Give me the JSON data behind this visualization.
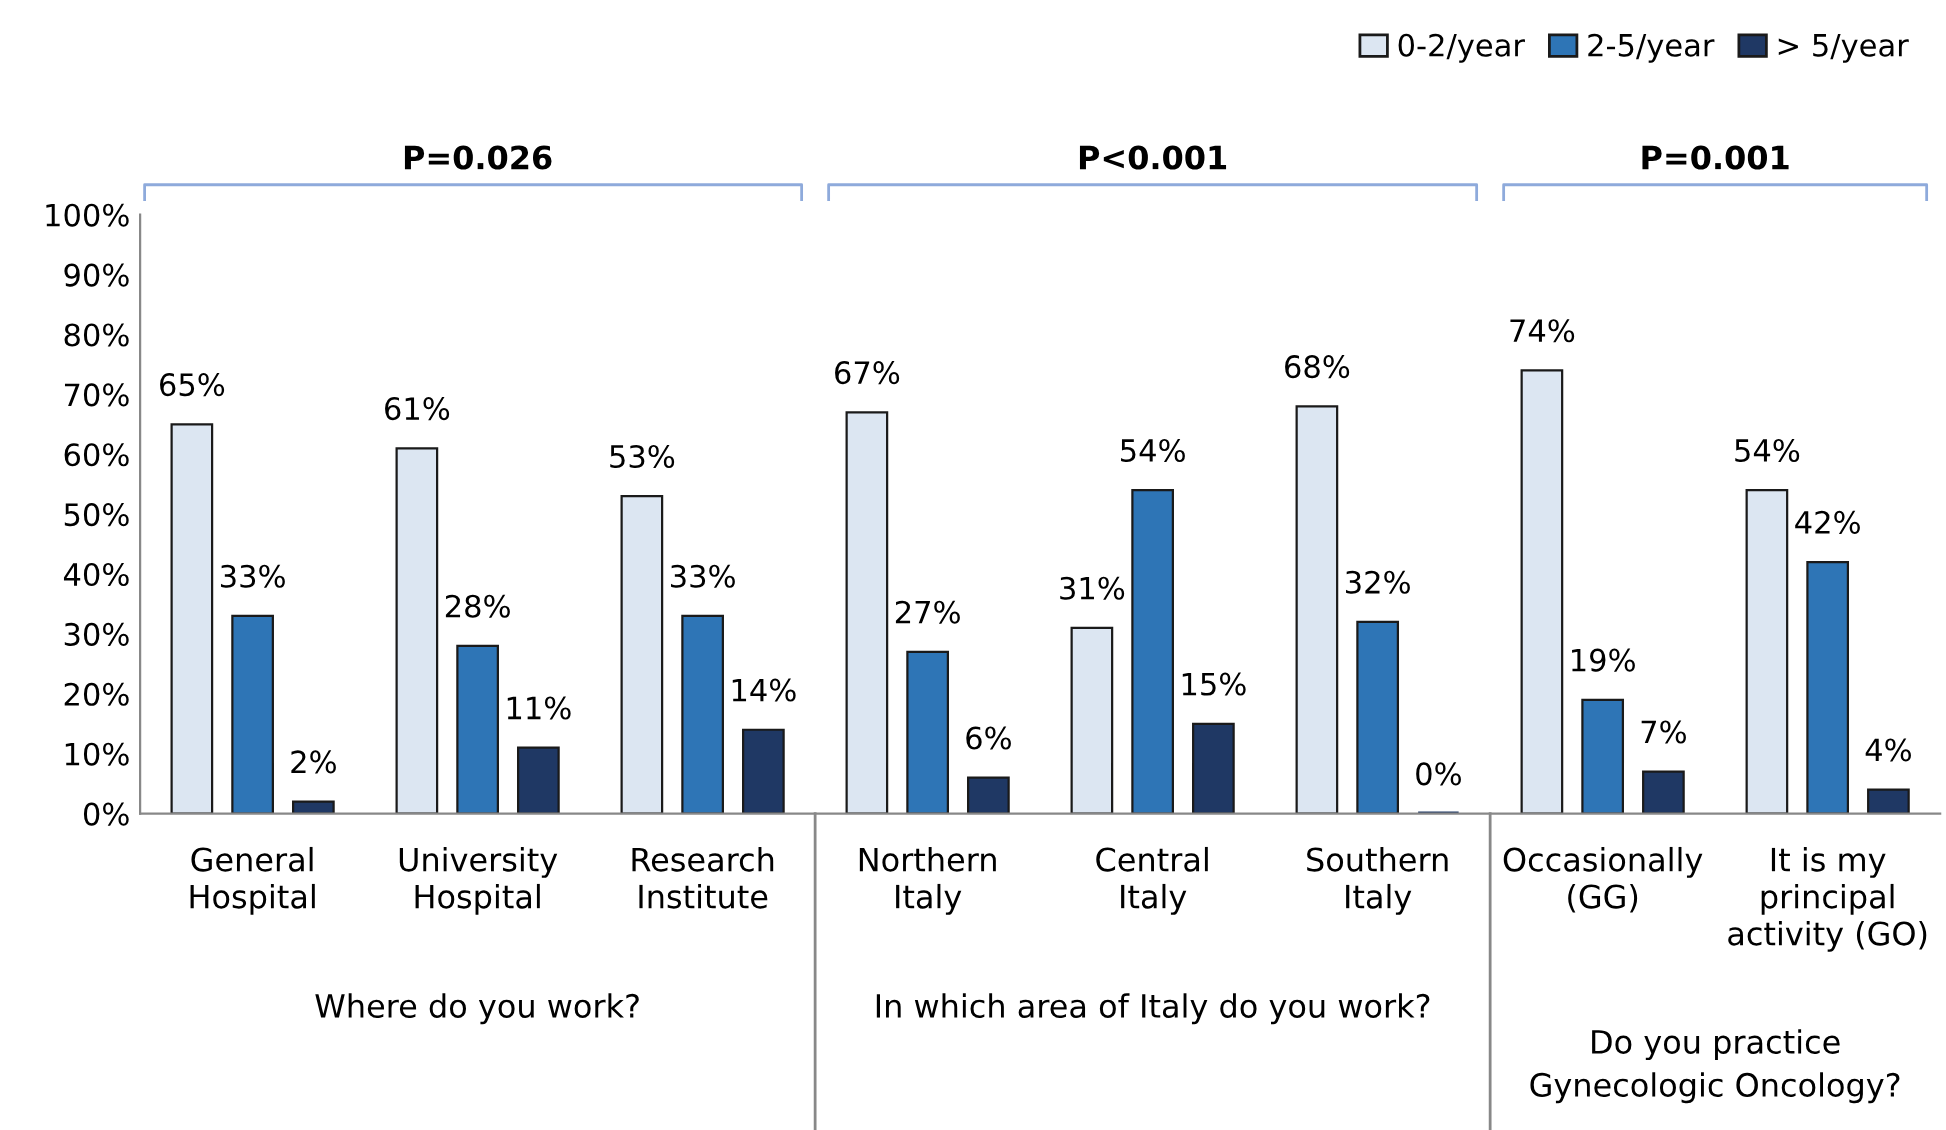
{
  "chart_data": {
    "type": "bar",
    "categories": [
      "General\nHospital",
      "University\nHospital",
      "Research\nInstitute",
      "Northern\nItaly",
      "Central\nItaly",
      "Southern\nItaly",
      "Occasionally\n(GG)",
      "It is my\nprincipal\nactivity (GO)"
    ],
    "series": [
      {
        "name": "0-2/year",
        "color": "#dce6f2",
        "values": [
          65,
          61,
          53,
          67,
          31,
          68,
          74,
          54
        ],
        "value_labels": [
          "65%",
          "61%",
          "53%",
          "67%",
          "31%",
          "68%",
          "74%",
          "54%"
        ]
      },
      {
        "name": "2-5/year",
        "color": "#2e75b6",
        "values": [
          33,
          28,
          33,
          27,
          54,
          32,
          19,
          42
        ],
        "value_labels": [
          "33%",
          "28%",
          "33%",
          "27%",
          "54%",
          "32%",
          "19%",
          "42%"
        ]
      },
      {
        "name": "> 5/year",
        "color": "#1f3864",
        "values": [
          2,
          11,
          14,
          6,
          15,
          0,
          7,
          4
        ],
        "value_labels": [
          "2%",
          "11%",
          "14%",
          "6%",
          "15%",
          "0%",
          "7%",
          "4%"
        ]
      }
    ],
    "ylim": [
      0,
      100
    ],
    "yticks": [
      {
        "value": 0,
        "label": "0%"
      },
      {
        "value": 10,
        "label": "10%"
      },
      {
        "value": 20,
        "label": "20%"
      },
      {
        "value": 30,
        "label": "30%"
      },
      {
        "value": 40,
        "label": "40%"
      },
      {
        "value": 50,
        "label": "50%"
      },
      {
        "value": 60,
        "label": "60%"
      },
      {
        "value": 70,
        "label": "70%"
      },
      {
        "value": 80,
        "label": "80%"
      },
      {
        "value": 90,
        "label": "90%"
      },
      {
        "value": 100,
        "label": "100%"
      }
    ],
    "annotations": [
      "P=0.026",
      "P<0.001",
      "P=0.001",
      "Where do you work?",
      "In which area of Italy do you work?",
      "Do you practice\nGynecologic Oncology?"
    ],
    "grid": false,
    "legend": "top right"
  }
}
